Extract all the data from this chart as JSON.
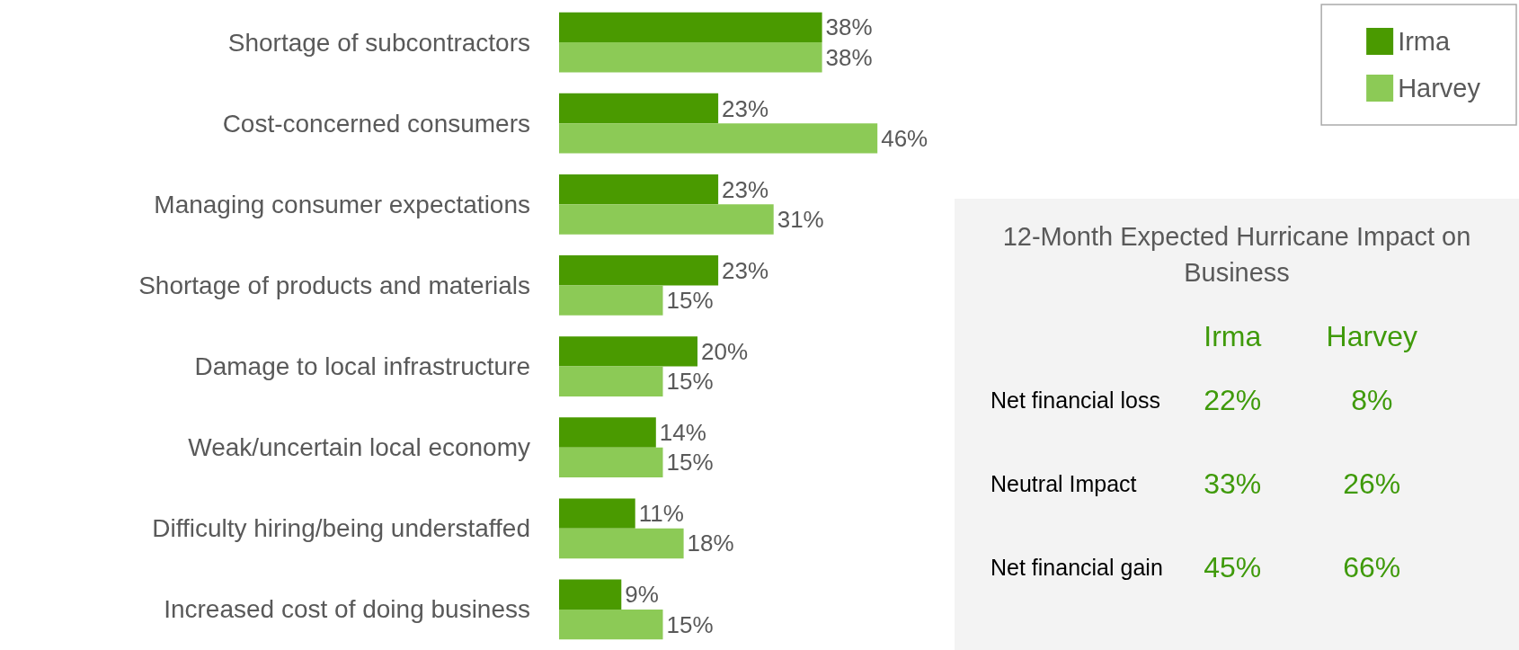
{
  "chart_data": [
    {
      "type": "bar",
      "orientation": "horizontal",
      "legend": "top right",
      "tick_labels": "y",
      "categories": [
        "Shortage of subcontractors",
        "Cost-concerned consumers",
        "Managing consumer expectations",
        "Shortage of products and materials",
        "Damage to local infrastructure",
        "Weak/uncertain local economy",
        "Difficulty hiring/being understaffed",
        "Increased cost of doing business"
      ],
      "series": [
        {
          "name": "Irma",
          "color": "#4a9a00",
          "values": [
            38,
            23,
            23,
            23,
            20,
            14,
            11,
            9
          ],
          "value_labels": [
            "38%",
            "23%",
            "23%",
            "23%",
            "20%",
            "14%",
            "11%",
            "9%"
          ]
        },
        {
          "name": "Harvey",
          "color": "#8cca56",
          "values": [
            38,
            46,
            31,
            15,
            15,
            15,
            18,
            15
          ],
          "value_labels": [
            "38%",
            "46%",
            "31%",
            "15%",
            "15%",
            "15%",
            "18%",
            "15%"
          ]
        }
      ]
    },
    {
      "type": "other",
      "title": "12-Month Expected Hurricane Impact on Business",
      "annotations": [
        "Irma",
        "Harvey",
        "Net financial loss",
        "22%",
        "8%",
        "Neutral Impact",
        "33%",
        "26%",
        "Net financial gain",
        "45%",
        "66%"
      ]
    }
  ]
}
